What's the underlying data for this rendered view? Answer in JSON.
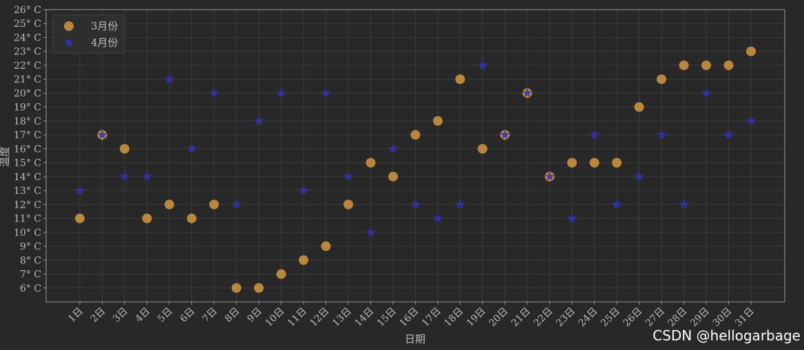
{
  "chart_data": {
    "type": "scatter",
    "categories": [
      "1日",
      "2日",
      "3日",
      "4日",
      "5日",
      "6日",
      "7日",
      "8日",
      "9日",
      "10日",
      "11日",
      "12日",
      "13日",
      "14日",
      "15日",
      "16日",
      "17日",
      "18日",
      "19日",
      "20日",
      "21日",
      "22日",
      "23日",
      "24日",
      "25日",
      "26日",
      "27日",
      "28日",
      "29日",
      "30日",
      "31日"
    ],
    "series": [
      {
        "name": "3月份",
        "marker": "circle",
        "color": "#c8913f",
        "values": [
          11,
          17,
          16,
          11,
          12,
          11,
          12,
          6,
          6,
          7,
          8,
          9,
          12,
          15,
          14,
          17,
          18,
          21,
          16,
          17,
          20,
          14,
          15,
          15,
          15,
          19,
          21,
          22,
          22,
          22,
          23
        ]
      },
      {
        "name": "4月份",
        "marker": "star",
        "color": "#3333bb",
        "values": [
          13,
          17,
          14,
          14,
          21,
          16,
          20,
          12,
          18,
          20,
          13,
          20,
          14,
          10,
          16,
          12,
          11,
          12,
          22,
          17,
          20,
          14,
          11,
          17,
          12,
          14,
          17,
          12,
          20,
          17,
          18
        ]
      }
    ],
    "yticks": [
      6,
      7,
      8,
      9,
      10,
      11,
      12,
      13,
      14,
      15,
      16,
      17,
      18,
      19,
      20,
      21,
      22,
      23,
      24,
      25,
      26
    ],
    "ytick_suffix": "° C",
    "ylim": [
      5,
      26
    ],
    "xlabel": "日期",
    "ylabel": "温度",
    "grid": true,
    "legend_position": "top-left",
    "colors": {
      "background": "#282828",
      "grid": "#3c3c3c",
      "axis": "#9a9a9a",
      "text": "#bdbdbd"
    }
  },
  "watermark": "CSDN @hellogarbage"
}
